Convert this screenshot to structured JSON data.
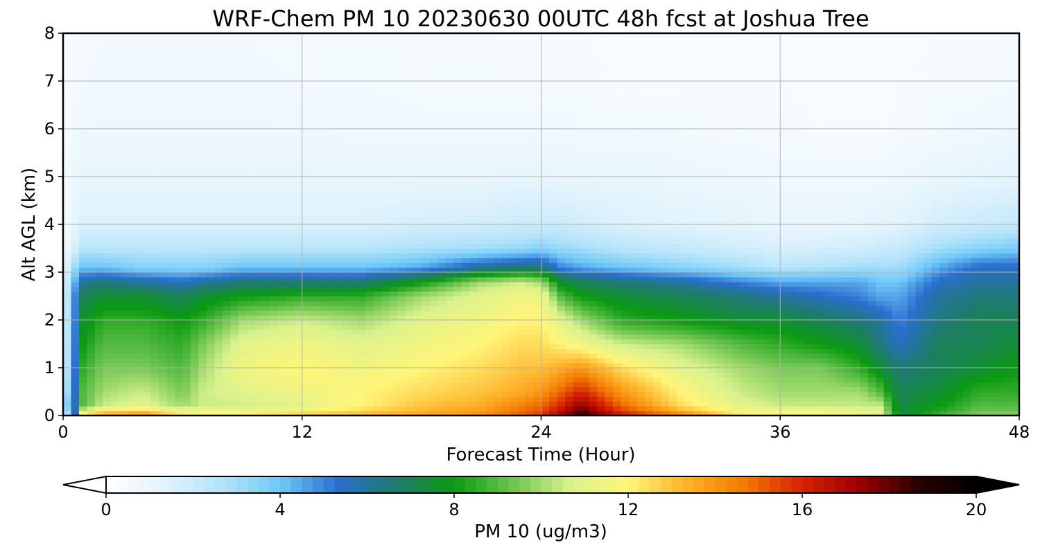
{
  "chart_data": {
    "type": "heatmap",
    "title": "WRF-Chem PM 10  20230630 00UTC 48h fcst at Joshua Tree",
    "xlabel": "Forecast Time (Hour)",
    "ylabel": "Alt AGL (km)",
    "xlim": [
      0,
      48
    ],
    "ylim": [
      0,
      8
    ],
    "x_ticks": [
      0,
      12,
      24,
      36,
      48
    ],
    "y_ticks": [
      0,
      1,
      2,
      3,
      4,
      5,
      6,
      7,
      8
    ],
    "grid": true,
    "colorbar": {
      "label": "PM 10  (ug/m3)",
      "range": [
        0,
        20
      ],
      "ticks": [
        0,
        4,
        8,
        12,
        16,
        20
      ],
      "extend": "both",
      "orientation": "horizontal",
      "colors": [
        "#ffffff",
        "#e1f3fc",
        "#b4e3fa",
        "#6ec8f7",
        "#2a6ecf",
        "#1f7a6e",
        "#0b9a12",
        "#6cc450",
        "#d9f28e",
        "#fff57a",
        "#ffb22b",
        "#f27a00",
        "#d62100",
        "#9c0000",
        "#2a0000",
        "#000000"
      ]
    },
    "times": [
      0,
      0.5,
      1,
      2,
      4,
      6,
      7,
      9,
      12,
      15,
      18,
      21,
      23,
      24,
      25,
      26,
      28,
      31,
      34,
      36,
      38,
      40,
      41,
      42,
      44,
      46,
      48
    ],
    "altitudes": [
      0,
      0.05,
      0.2,
      0.5,
      1,
      1.5,
      2,
      2.5,
      2.8,
      3.1,
      3.5,
      4,
      5,
      6,
      7,
      8
    ],
    "values": [
      [
        0,
        2,
        3,
        2,
        1.5,
        1.2,
        1,
        0.9,
        0.8,
        0.7,
        0.5,
        0.4,
        0.3,
        0.3,
        0.3,
        0.2
      ],
      [
        0,
        4,
        5,
        4.5,
        4.5,
        4.5,
        4.5,
        4.5,
        4,
        3,
        1.5,
        1,
        0.8,
        0.6,
        0.5,
        0.4
      ],
      [
        15,
        12,
        9,
        9,
        8.5,
        8,
        7.5,
        7,
        6,
        4,
        2.5,
        1.5,
        1,
        0.8,
        0.6,
        0.5
      ],
      [
        15,
        13,
        10.5,
        10,
        9.5,
        9,
        8.5,
        7.5,
        6.5,
        4,
        2.5,
        1.5,
        1,
        0.8,
        0.7,
        0.6
      ],
      [
        16,
        13.5,
        11,
        10.5,
        9.5,
        9,
        8.5,
        7.5,
        6,
        3.5,
        2.5,
        1.5,
        1,
        0.8,
        0.7,
        0.6
      ],
      [
        15,
        12,
        10,
        9.5,
        9,
        8.5,
        8,
        7,
        5.5,
        3.5,
        2.5,
        1.5,
        1,
        0.8,
        0.7,
        0.6
      ],
      [
        15,
        12,
        10.5,
        10.5,
        10,
        9.5,
        8.5,
        7.5,
        6,
        3.5,
        2.5,
        1.5,
        1,
        0.8,
        0.7,
        0.6
      ],
      [
        15,
        12,
        10.5,
        11,
        11.5,
        11,
        10,
        8,
        6.5,
        4,
        2.5,
        1.5,
        1,
        0.8,
        0.7,
        0.6
      ],
      [
        15,
        12.5,
        11,
        11.5,
        12,
        11.5,
        10.5,
        8.5,
        6.5,
        4,
        2.5,
        1.5,
        1,
        0.8,
        0.6,
        0.5
      ],
      [
        15,
        13,
        12,
        12,
        11.5,
        11,
        10,
        8.5,
        6.5,
        4,
        2.5,
        1.5,
        1,
        0.7,
        0.6,
        0.5
      ],
      [
        15,
        13.5,
        13,
        12.5,
        12,
        11.5,
        11,
        10,
        8,
        4.5,
        2.8,
        1.7,
        1,
        0.7,
        0.5,
        0.5
      ],
      [
        16,
        14,
        13.5,
        13,
        12.5,
        12,
        11.5,
        11,
        10,
        6,
        3,
        1.8,
        1,
        0.7,
        0.5,
        0.5
      ],
      [
        16.5,
        15,
        14.5,
        13.5,
        13,
        12.5,
        12,
        11.5,
        10.5,
        6.5,
        3.2,
        2,
        1.1,
        0.7,
        0.5,
        0.4
      ],
      [
        17,
        15.5,
        15,
        14,
        13,
        12.5,
        12,
        11.5,
        10,
        6.5,
        3.5,
        2,
        1.1,
        0.7,
        0.5,
        0.4
      ],
      [
        18,
        17,
        16,
        15,
        13.5,
        12,
        11,
        9,
        7.5,
        5,
        3.2,
        2,
        1,
        0.7,
        0.5,
        0.4
      ],
      [
        19.5,
        18.5,
        17.5,
        16,
        14,
        11.5,
        10,
        8,
        7,
        4.5,
        3,
        1.8,
        1,
        0.6,
        0.5,
        0.4
      ],
      [
        17,
        16,
        15,
        14,
        12.5,
        10.5,
        8.5,
        7.5,
        6.5,
        4,
        2.5,
        1.5,
        1,
        0.6,
        0.4,
        0.3
      ],
      [
        15.5,
        14,
        12.5,
        12,
        11,
        10,
        8,
        7,
        6,
        3.5,
        2.2,
        1.3,
        0.9,
        0.6,
        0.4,
        0.3
      ],
      [
        14.5,
        12,
        11,
        10.5,
        10,
        9,
        7.5,
        6.5,
        5,
        3,
        1.8,
        1.2,
        0.8,
        0.5,
        0.4,
        0.3
      ],
      [
        14.5,
        12,
        10.5,
        10,
        9.5,
        8.5,
        7.5,
        6,
        4.5,
        2.5,
        1.6,
        1,
        0.7,
        0.5,
        0.4,
        0.3
      ],
      [
        14,
        12,
        10.5,
        10,
        9.5,
        8,
        7,
        5.5,
        4.5,
        2.7,
        1.7,
        1,
        0.7,
        0.4,
        0.3,
        0.3
      ],
      [
        13,
        11.5,
        10.5,
        10,
        8.5,
        7.5,
        6.5,
        5,
        4.5,
        3,
        1.8,
        1.1,
        0.7,
        0.4,
        0.3,
        0.3
      ],
      [
        12,
        11,
        10.5,
        9,
        7.5,
        6.5,
        6,
        4.5,
        4,
        3,
        2,
        1.2,
        0.7,
        0.4,
        0.3,
        0.3
      ],
      [
        8,
        7.5,
        7.2,
        7,
        6.5,
        5.5,
        5,
        4.5,
        4,
        3,
        2.2,
        1.3,
        0.8,
        0.5,
        0.4,
        0.3
      ],
      [
        9,
        8.5,
        8,
        7.5,
        7,
        7,
        6.5,
        6,
        5.5,
        4.5,
        3,
        1.8,
        1,
        0.6,
        0.5,
        0.4
      ],
      [
        9.5,
        9.5,
        9,
        8.5,
        7.5,
        7,
        7,
        6.5,
        6,
        5.5,
        3.5,
        2,
        1.1,
        0.7,
        0.5,
        0.4
      ],
      [
        10,
        9.5,
        9,
        8.5,
        8,
        7.5,
        7,
        6.5,
        6,
        5.5,
        3.8,
        2.2,
        1.2,
        0.8,
        0.6,
        0.5
      ]
    ]
  }
}
